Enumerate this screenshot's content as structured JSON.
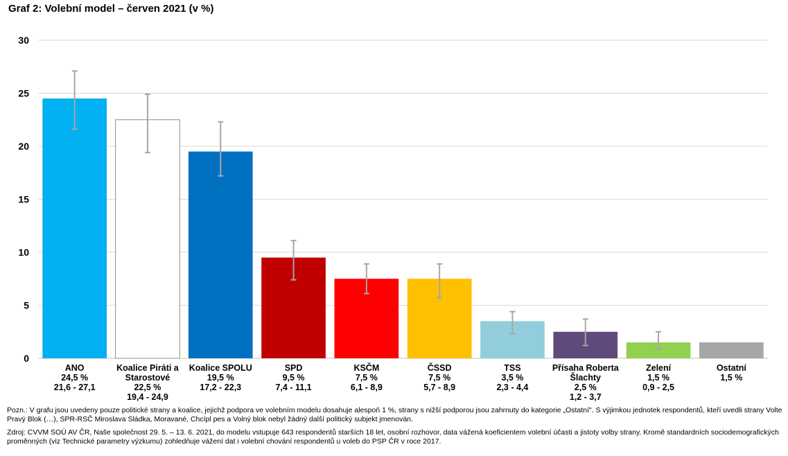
{
  "title": "Graf 2: Volební model – červen 2021 (v %)",
  "chart_data": {
    "type": "bar",
    "ylim": [
      0,
      30
    ],
    "yticks": [
      0,
      5,
      10,
      15,
      20,
      25,
      30
    ],
    "grid": true,
    "categories": [
      {
        "label": [
          "ANO"
        ],
        "value": 24.5,
        "value_label": "24,5 %",
        "range_label": "21,6 - 27,1",
        "ci": [
          21.6,
          27.1
        ],
        "color": "#00b0f0"
      },
      {
        "label": [
          "Koalice Piráti a",
          "Starostové"
        ],
        "value": 22.5,
        "value_label": "22,5 %",
        "range_label": "19,4 - 24,9",
        "ci": [
          19.4,
          24.9
        ],
        "color": "#ffffff"
      },
      {
        "label": [
          "Koalice SPOLU"
        ],
        "value": 19.5,
        "value_label": "19,5 %",
        "range_label": "17,2 - 22,3",
        "ci": [
          17.2,
          22.3
        ],
        "color": "#0070c0"
      },
      {
        "label": [
          "SPD"
        ],
        "value": 9.5,
        "value_label": "9,5 %",
        "range_label": "7,4 - 11,1",
        "ci": [
          7.4,
          11.1
        ],
        "color": "#c00000"
      },
      {
        "label": [
          "KSČM"
        ],
        "value": 7.5,
        "value_label": "7,5 %",
        "range_label": "6,1 - 8,9",
        "ci": [
          6.1,
          8.9
        ],
        "color": "#ff0000"
      },
      {
        "label": [
          "ČSSD"
        ],
        "value": 7.5,
        "value_label": "7,5 %",
        "range_label": "5,7 - 8,9",
        "ci": [
          5.7,
          8.9
        ],
        "color": "#ffc000"
      },
      {
        "label": [
          "TSS"
        ],
        "value": 3.5,
        "value_label": "3,5 %",
        "range_label": "2,3 - 4,4",
        "ci": [
          2.3,
          4.4
        ],
        "color": "#92cddc"
      },
      {
        "label": [
          "Přísaha Roberta",
          "Šlachty"
        ],
        "value": 2.5,
        "value_label": "2,5 %",
        "range_label": "1,2 - 3,7",
        "ci": [
          1.2,
          3.7
        ],
        "color": "#604a7b"
      },
      {
        "label": [
          "Zelení"
        ],
        "value": 1.5,
        "value_label": "1,5 %",
        "range_label": "0,9 - 2,5",
        "ci": [
          0.9,
          2.5
        ],
        "color": "#92d050"
      },
      {
        "label": [
          "Ostatní"
        ],
        "value": 1.5,
        "value_label": "1,5 %",
        "range_label": "",
        "ci": null,
        "color": "#a6a6a6"
      }
    ]
  },
  "notes": {
    "poznamka": "Pozn.: V grafu jsou uvedeny pouze politické strany a koalice, jejichž podpora ve volebním modelu dosahuje alespoň 1 %, strany s nižší podporou jsou zahrnuty do kategorie „Ostatní\". S výjimkou jednotek respondentů, kteří uvedli strany Volte Pravý Blok (…), SPR-RSČ Miroslava Sládka, Moravané, Chcípl pes a Volný blok nebyl žádný další politický subjekt jmenován.",
    "zdroj": "Zdroj: CVVM SOÚ AV ČR, Naše společnost 29. 5. – 13. 6. 2021, do modelu vstupuje 643 respondentů starších 18 let, osobní rozhovor, data vážená koeficientem volební účasti a jistoty volby strany. Kromě standardních sociodemografických proměnných (viz Technické parametry výzkumu) zohledňuje vážení dat i volební chování respondentů u voleb do PSP ČR v roce 2017."
  }
}
